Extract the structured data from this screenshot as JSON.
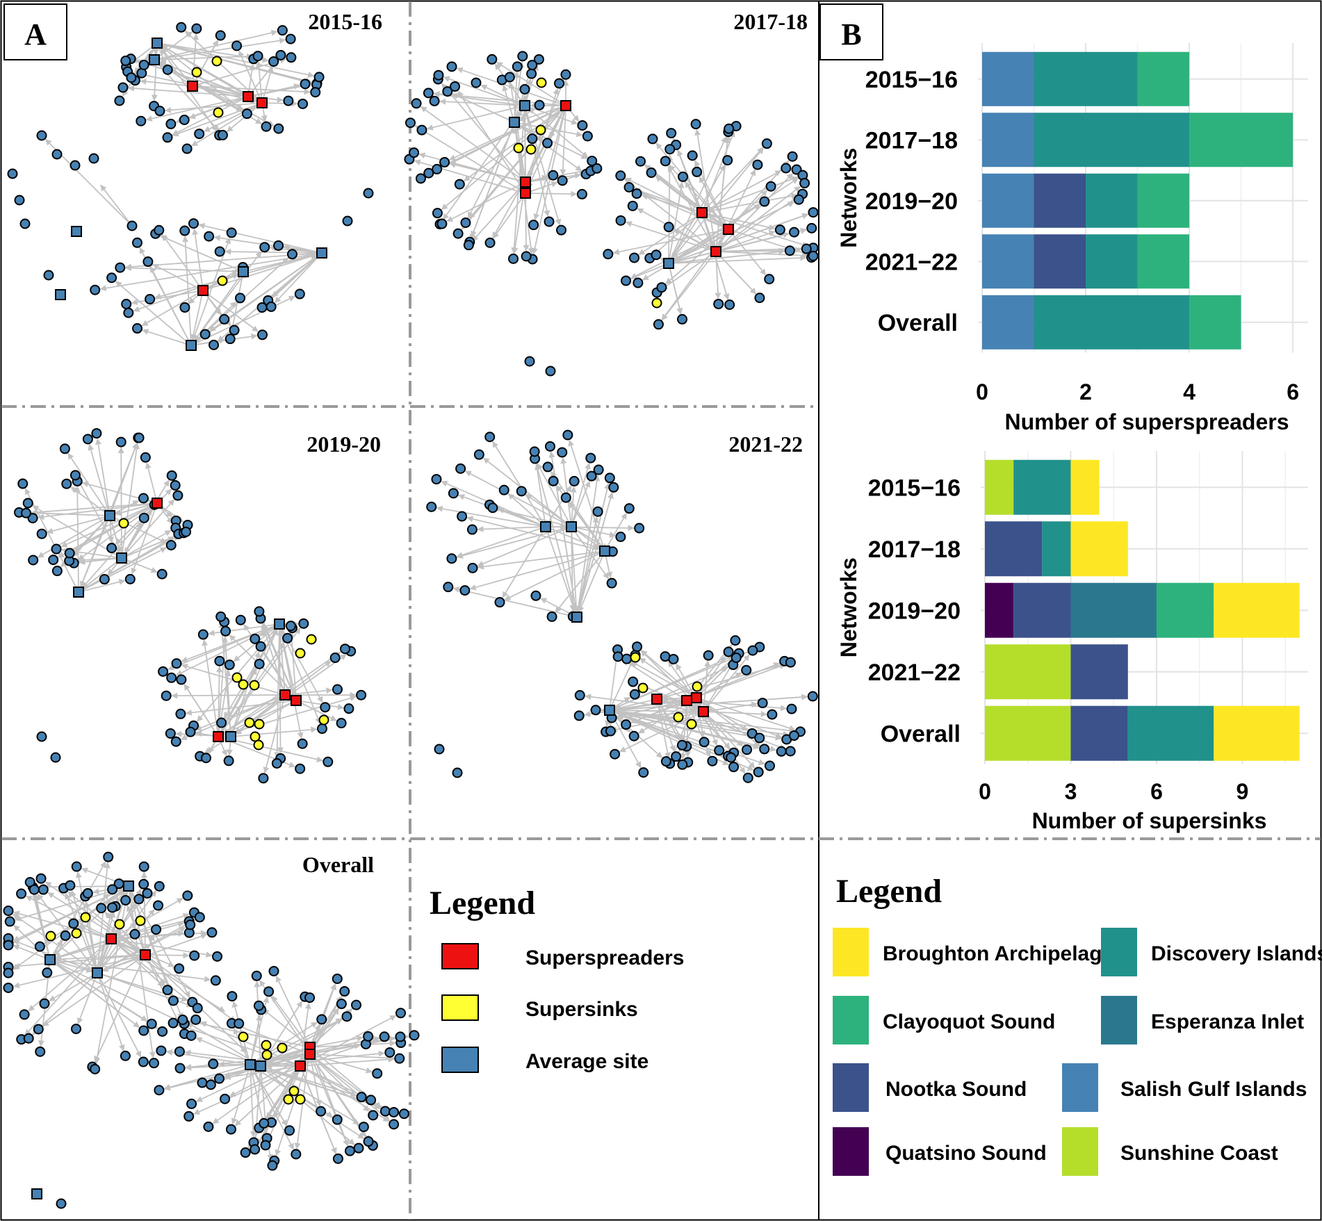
{
  "panel_labels": {
    "a": "A",
    "b": "B"
  },
  "networks": [
    {
      "title": "2015-16"
    },
    {
      "title": "2017-18"
    },
    {
      "title": "2019-20"
    },
    {
      "title": "2021-22"
    },
    {
      "title": "Overall"
    }
  ],
  "legend_a": {
    "title": "Legend",
    "items": [
      {
        "label": "Superspreaders",
        "color": "#ee1111"
      },
      {
        "label": "Supersinks",
        "color": "#ffff33"
      },
      {
        "label": "Average site",
        "color": "#4682b4"
      }
    ]
  },
  "legend_b": {
    "title": "Legend",
    "items": [
      {
        "label": "Broughton Archipelago",
        "color": "#fde725"
      },
      {
        "label": "Discovery Islands",
        "color": "#21918c"
      },
      {
        "label": "Clayoquot Sound",
        "color": "#2db27d"
      },
      {
        "label": "Esperanza Inlet",
        "color": "#2a788e"
      },
      {
        "label": "Nootka Sound",
        "color": "#3b528b"
      },
      {
        "label": "Salish Gulf Islands",
        "color": "#4682b4"
      },
      {
        "label": "Quatsino Sound",
        "color": "#440154"
      },
      {
        "label": "Sunshine Coast",
        "color": "#b5de2b"
      }
    ]
  },
  "chart_data": [
    {
      "type": "bar",
      "orientation": "horizontal",
      "stacked": true,
      "title": "",
      "xlabel": "Number of superspreaders",
      "ylabel": "Networks",
      "xlim": [
        0,
        6.2
      ],
      "xticks": [
        0,
        2,
        4,
        6
      ],
      "categories": [
        "2015−16",
        "2017−18",
        "2019−20",
        "2021−22",
        "Overall"
      ],
      "series": [
        {
          "name": "Salish Gulf Islands",
          "color": "#4682b4",
          "values": [
            1,
            1,
            1,
            1,
            1
          ]
        },
        {
          "name": "Nootka Sound",
          "color": "#3b528b",
          "values": [
            0,
            0,
            1,
            1,
            0
          ]
        },
        {
          "name": "Discovery Islands",
          "color": "#21918c",
          "values": [
            2,
            3,
            1,
            1,
            3
          ]
        },
        {
          "name": "Clayoquot Sound",
          "color": "#2db27d",
          "values": [
            1,
            2,
            1,
            1,
            1
          ]
        }
      ]
    },
    {
      "type": "bar",
      "orientation": "horizontal",
      "stacked": true,
      "title": "",
      "xlabel": "Number of supersinks",
      "ylabel": "Networks",
      "xlim": [
        0,
        11.2
      ],
      "xticks": [
        0,
        3,
        6,
        9
      ],
      "categories": [
        "2015−16",
        "2017−18",
        "2019−20",
        "2021−22",
        "Overall"
      ],
      "series": [
        {
          "name": "Quatsino Sound",
          "color": "#440154",
          "values": [
            0,
            0,
            1,
            0,
            0
          ]
        },
        {
          "name": "Sunshine Coast",
          "color": "#b5de2b",
          "values": [
            1,
            0,
            0,
            3,
            3
          ]
        },
        {
          "name": "Nootka Sound",
          "color": "#3b528b",
          "values": [
            0,
            2,
            2,
            2,
            2
          ]
        },
        {
          "name": "Esperanza Inlet",
          "color": "#2a788e",
          "values": [
            0,
            0,
            3,
            0,
            0
          ]
        },
        {
          "name": "Discovery Islands",
          "color": "#21918c",
          "values": [
            2,
            1,
            0,
            0,
            3
          ]
        },
        {
          "name": "Clayoquot Sound",
          "color": "#2db27d",
          "values": [
            0,
            0,
            2,
            0,
            0
          ]
        },
        {
          "name": "Broughton Archipelago",
          "color": "#fde725",
          "values": [
            1,
            2,
            3,
            0,
            3
          ]
        }
      ]
    }
  ]
}
